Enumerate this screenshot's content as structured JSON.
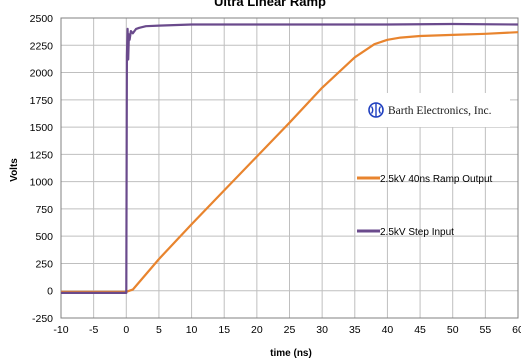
{
  "chart_data": {
    "type": "line",
    "title": "Ultra Linear Ramp",
    "xlabel": "time (ns)",
    "ylabel": "Volts",
    "xlim": [
      -10,
      60
    ],
    "ylim": [
      -250,
      2500
    ],
    "x_ticks": [
      -10,
      -5,
      0,
      5,
      10,
      15,
      20,
      25,
      30,
      35,
      40,
      45,
      50,
      55,
      60
    ],
    "y_ticks": [
      -250,
      0,
      250,
      500,
      750,
      1000,
      1250,
      1500,
      1750,
      2000,
      2250,
      2500
    ],
    "x_tick_labels": [
      "-10",
      "-5",
      "0",
      "5",
      "10",
      "15",
      "20",
      "25",
      "30",
      "35",
      "40",
      "45",
      "50",
      "55",
      "60"
    ],
    "y_tick_labels": [
      "-250",
      "0",
      "250",
      "500",
      "750",
      "1000",
      "1250",
      "1500",
      "1750",
      "2000",
      "2250",
      "2500"
    ],
    "grid": true,
    "legend_position": "right",
    "series": [
      {
        "name": "2.5kV 40ns Ramp Output",
        "color": "#e8842e",
        "x": [
          -10,
          -5,
          0,
          1,
          5,
          10,
          15,
          20,
          25,
          30,
          35,
          38,
          40,
          42,
          45,
          50,
          55,
          60
        ],
        "values": [
          -10,
          -10,
          -10,
          10,
          290,
          610,
          920,
          1230,
          1540,
          1860,
          2140,
          2260,
          2300,
          2320,
          2335,
          2345,
          2355,
          2370
        ]
      },
      {
        "name": "2.5kV Step Input",
        "color": "#6a4a8c",
        "x": [
          -10,
          -5,
          0,
          0.1,
          0.2,
          0.3,
          0.4,
          0.5,
          0.7,
          1,
          1.5,
          2,
          3,
          5,
          10,
          20,
          30,
          40,
          50,
          60
        ],
        "values": [
          -20,
          -20,
          -20,
          2150,
          2400,
          2120,
          2350,
          2300,
          2380,
          2360,
          2400,
          2410,
          2425,
          2430,
          2440,
          2440,
          2440,
          2440,
          2445,
          2440
        ]
      }
    ]
  },
  "logo": {
    "text": "Barth Electronics, Inc.",
    "color": "#1f3fbf"
  }
}
